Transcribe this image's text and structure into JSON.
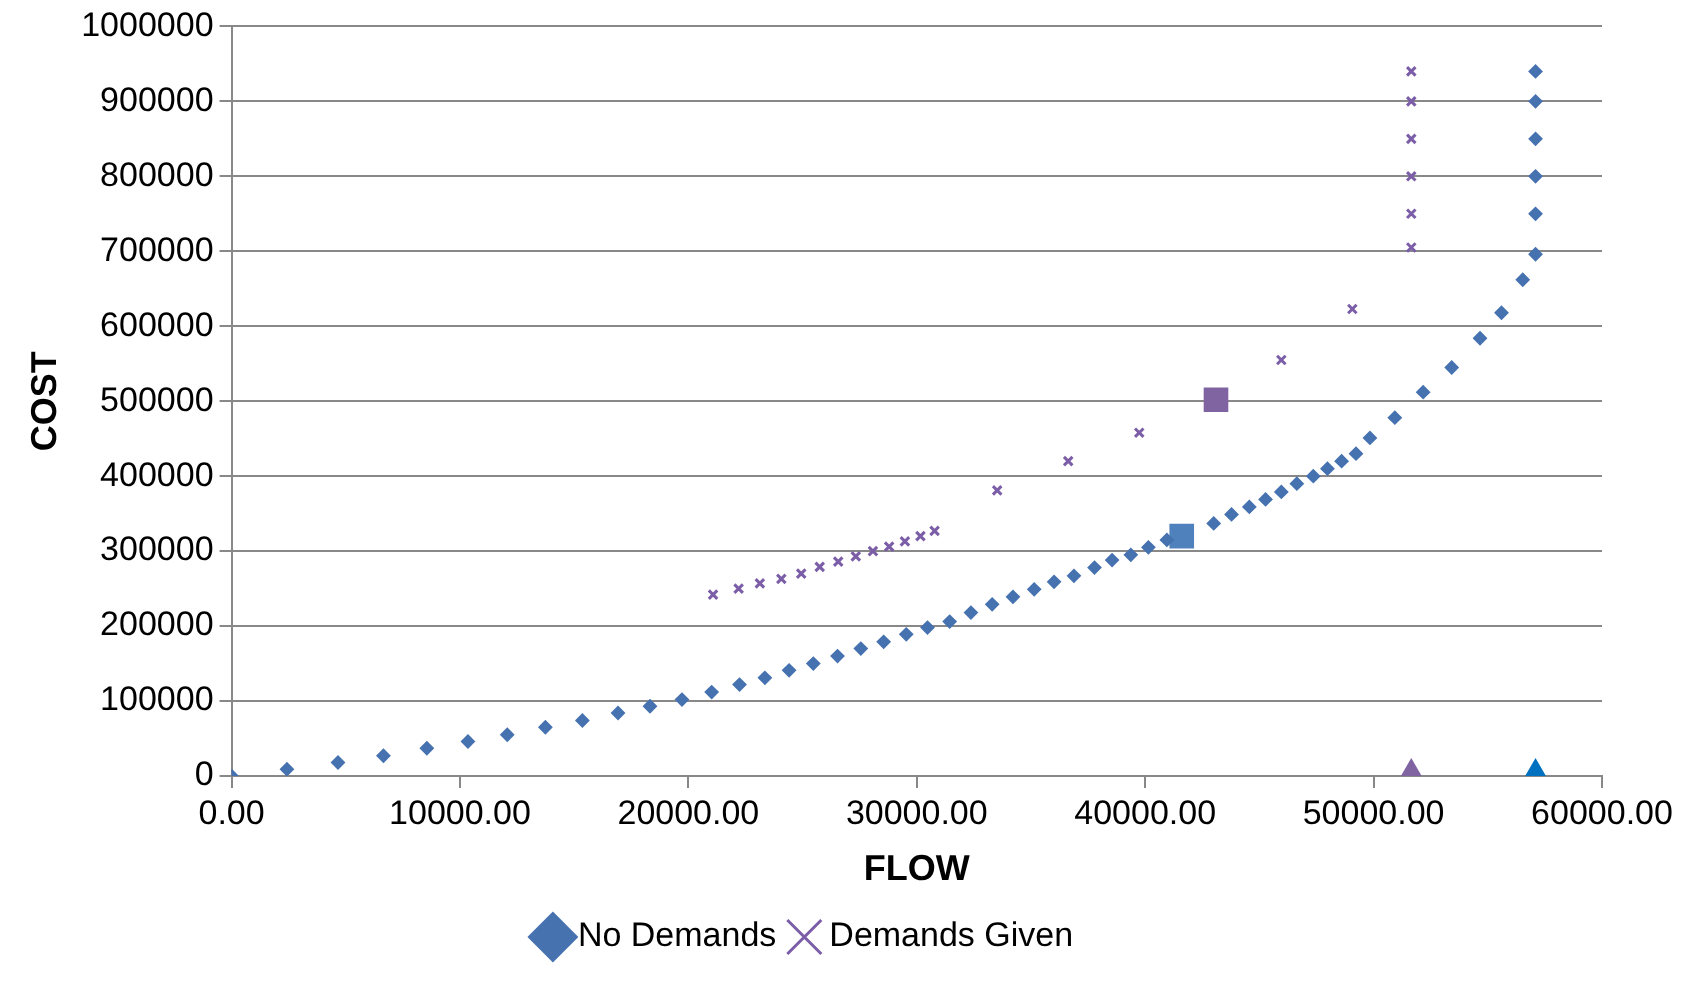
{
  "chart_data": {
    "type": "scatter",
    "xlabel": "FLOW",
    "ylabel": "COST",
    "xlim": [
      0,
      60000
    ],
    "xticks": [
      {
        "value": 0,
        "label": "0.00"
      },
      {
        "value": 10000,
        "label": "10000.00"
      },
      {
        "value": 20000,
        "label": "20000.00"
      },
      {
        "value": 30000,
        "label": "30000.00"
      },
      {
        "value": 40000,
        "label": "40000.00"
      },
      {
        "value": 50000,
        "label": "50000.00"
      },
      {
        "value": 60000,
        "label": "60000.00"
      }
    ],
    "ylim": [
      0,
      1000000
    ],
    "yticks": [
      0,
      100000,
      200000,
      300000,
      400000,
      500000,
      600000,
      700000,
      800000,
      900000,
      1000000
    ],
    "grid": "y",
    "legend": "bottom",
    "series": [
      {
        "name": "No Demands",
        "color": "#4672b0",
        "marker": "diamond",
        "x": [
          0,
          2425,
          4660,
          6650,
          8550,
          10350,
          12070,
          13740,
          15360,
          16920,
          18320,
          19720,
          21020,
          22240,
          23350,
          24410,
          25470,
          26530,
          27550,
          28550,
          29540,
          30470,
          31440,
          32370,
          33300,
          34210,
          35140,
          36010,
          36880,
          37780,
          38550,
          39370,
          40140,
          40950,
          43000,
          43780,
          44560,
          45270,
          45960,
          46640,
          47360,
          47980,
          48600,
          49230,
          49840,
          50930,
          52170,
          53420,
          54660,
          55600,
          56530,
          57090,
          57090,
          57090,
          57090,
          57090,
          57090
        ],
        "values": [
          0,
          9000,
          18000,
          27000,
          37000,
          46000,
          55000,
          65000,
          74000,
          84000,
          93000,
          102000,
          112000,
          122000,
          131000,
          141000,
          150000,
          160000,
          170000,
          179000,
          189000,
          198000,
          206000,
          218000,
          229000,
          239000,
          249000,
          259000,
          267000,
          278000,
          288000,
          295000,
          305000,
          315000,
          337000,
          349000,
          359000,
          369000,
          379000,
          390000,
          400000,
          410000,
          420000,
          430000,
          451000,
          478000,
          512000,
          545000,
          584000,
          618000,
          662000,
          696000,
          750000,
          800000,
          850000,
          900000,
          940000
        ]
      },
      {
        "name": "Demands Given",
        "color": "#7b5ea7",
        "marker": "cross",
        "x": [
          21080,
          22200,
          23130,
          24070,
          24940,
          25750,
          26560,
          27330,
          28080,
          28790,
          29480,
          30160,
          30780,
          33520,
          36630,
          39740,
          45960,
          49070,
          51650,
          51650,
          51650,
          51650,
          51650,
          51650
        ],
        "values": [
          242000,
          250000,
          257000,
          263000,
          270000,
          279000,
          286000,
          293000,
          300000,
          306000,
          313000,
          320000,
          327000,
          381000,
          420000,
          458000,
          555000,
          623000,
          705000,
          750000,
          800000,
          850000,
          900000,
          940000
        ]
      },
      {
        "color": "#4f81bd",
        "marker": "square",
        "x": [
          41600
        ],
        "values": [
          320000
        ]
      },
      {
        "color": "#8064a2",
        "marker": "square",
        "x": [
          43100
        ],
        "values": [
          502000
        ]
      },
      {
        "color": "#8064a2",
        "marker": "triangle",
        "x": [
          51650
        ],
        "values": [
          0
        ]
      },
      {
        "color": "#0070c0",
        "marker": "triangle",
        "x": [
          57090
        ],
        "values": [
          0
        ]
      }
    ]
  }
}
